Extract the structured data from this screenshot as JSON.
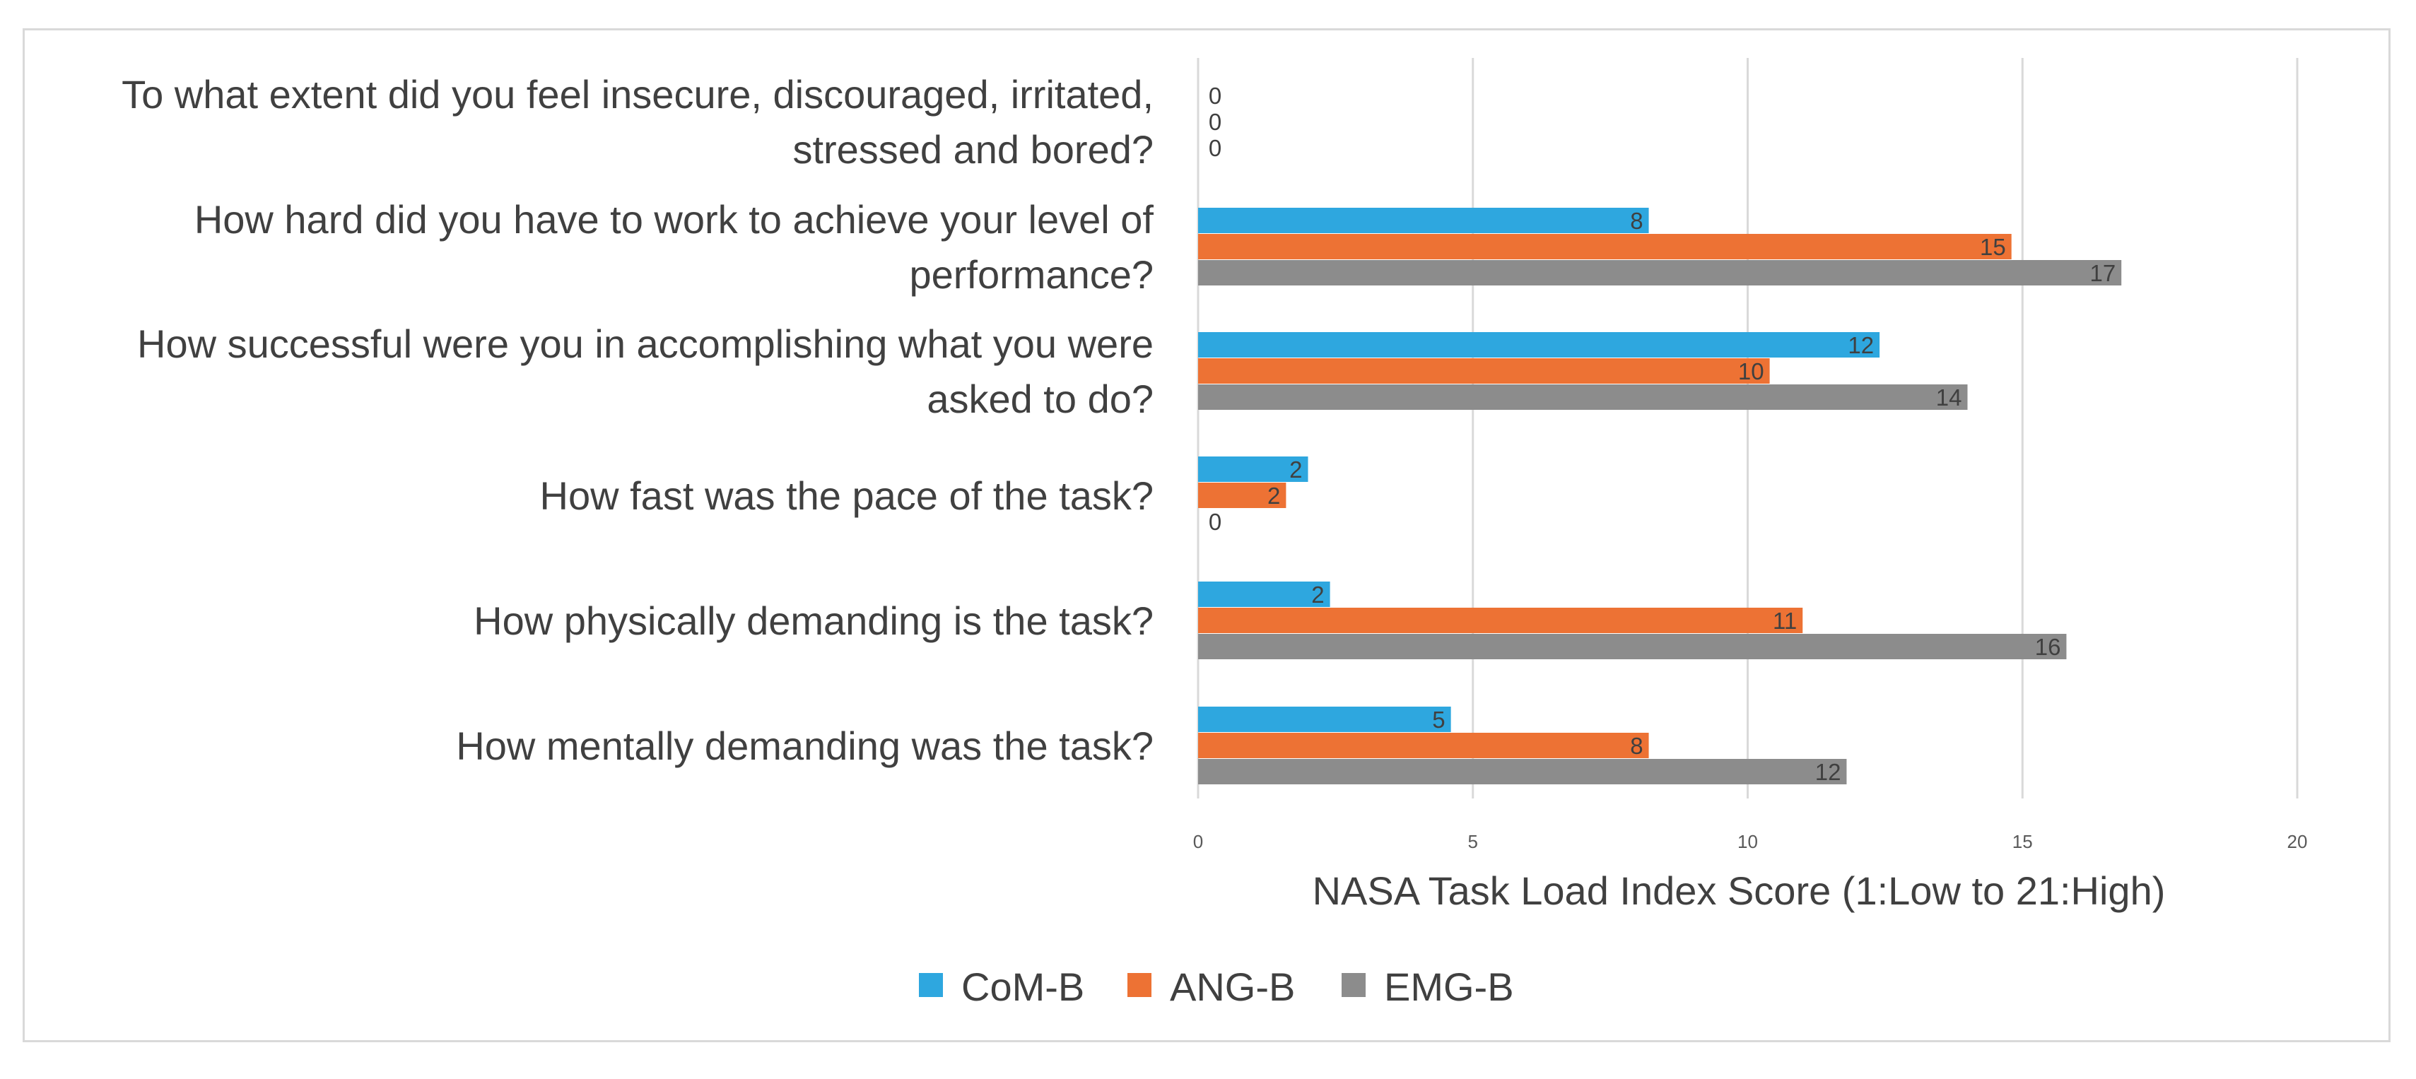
{
  "chart_data": {
    "type": "bar",
    "orientation": "horizontal",
    "title": "",
    "xlabel": "NASA Task Load Index Score (1:Low to 21:High)",
    "ylabel": "",
    "xlim": [
      0,
      20
    ],
    "xticks": [
      0,
      5,
      10,
      15,
      20
    ],
    "grid": true,
    "legend_position": "bottom",
    "categories": [
      "How mentally demanding was the task?",
      "How physically demanding is the task?",
      "How fast was the pace of the task?",
      "How successful were you in accomplishing what you were asked to do?",
      "How hard did you have to work to achieve your level of performance?",
      "To what extent did you feel insecure, discouraged, irritated, stressed and bored?"
    ],
    "series": [
      {
        "name": "CoM-B",
        "color": "#2EA7DF",
        "values": [
          4.6,
          2.4,
          2.0,
          12.4,
          8.2,
          0
        ],
        "labels": [
          "5",
          "2",
          "2",
          "12",
          "8",
          "0"
        ]
      },
      {
        "name": "ANG-B",
        "color": "#ED7234",
        "values": [
          8.2,
          11.0,
          1.6,
          10.4,
          14.8,
          0
        ],
        "labels": [
          "8",
          "11",
          "2",
          "10",
          "15",
          "0"
        ]
      },
      {
        "name": "EMG-B",
        "color": "#8C8C8C",
        "values": [
          11.8,
          15.8,
          0,
          14.0,
          16.8,
          0
        ],
        "labels": [
          "12",
          "16",
          "0",
          "14",
          "17",
          "0"
        ]
      }
    ]
  }
}
